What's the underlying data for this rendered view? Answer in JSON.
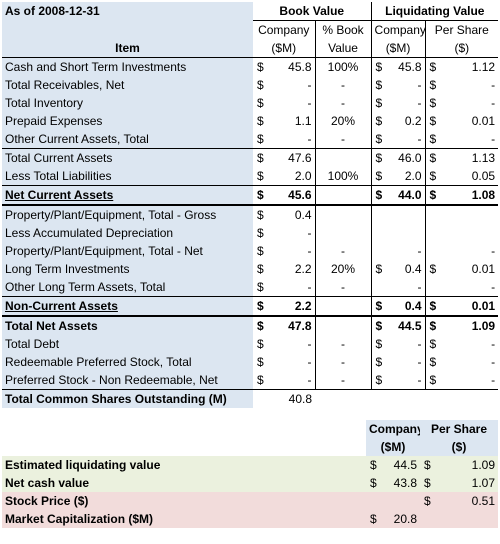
{
  "header": {
    "as_of": "As of 2008-12-31",
    "book_value": "Book Value",
    "liquidating_value": "Liquidating Value",
    "company": "Company",
    "pct_book": "% Book",
    "company2": "Company",
    "per_share": "Per Share",
    "item": "Item",
    "sm": "($M)",
    "value": "Value",
    "sm2": "($M)",
    "dollar": "($)"
  },
  "rows": [
    {
      "item": "Cash and Short Term Investments",
      "bv_c": "$",
      "bv": "45.8",
      "pct": "100%",
      "lv_c": "$",
      "lv": "45.8",
      "ps_c": "$",
      "ps": "1.12"
    },
    {
      "item": "Total Receivables, Net",
      "bv_c": "$",
      "bv": "-",
      "pct": "-",
      "lv_c": "$",
      "lv": "-",
      "ps_c": "$",
      "ps": "-"
    },
    {
      "item": "Total Inventory",
      "bv_c": "$",
      "bv": "-",
      "pct": "-",
      "lv_c": "$",
      "lv": "-",
      "ps_c": "$",
      "ps": "-"
    },
    {
      "item": "Prepaid Expenses",
      "bv_c": "$",
      "bv": "1.1",
      "pct": "20%",
      "lv_c": "$",
      "lv": "0.2",
      "ps_c": "$",
      "ps": "0.01"
    },
    {
      "item": "Other Current Assets, Total",
      "bv_c": "$",
      "bv": "-",
      "pct": "-",
      "lv_c": "$",
      "lv": "-",
      "ps_c": "$",
      "ps": "-"
    },
    {
      "item": "Total Current Assets",
      "bv_c": "$",
      "bv": "47.6",
      "pct": "",
      "lv_c": "$",
      "lv": "46.0",
      "ps_c": "$",
      "ps": "1.13"
    },
    {
      "item": "Less Total Liabilities",
      "bv_c": "$",
      "bv": "2.0",
      "pct": "100%",
      "lv_c": "$",
      "lv": "2.0",
      "ps_c": "$",
      "ps": "0.05"
    },
    {
      "item": "Net Current Assets",
      "bv_c": "$",
      "bv": "45.6",
      "pct": "",
      "lv_c": "$",
      "lv": "44.0",
      "ps_c": "$",
      "ps": "1.08"
    },
    {
      "item": "Property/Plant/Equipment, Total - Gross",
      "bv_c": "$",
      "bv": "0.4",
      "pct": "",
      "lv_c": "",
      "lv": "",
      "ps_c": "",
      "ps": ""
    },
    {
      "item": "Less Accumulated Depreciation",
      "bv_c": "$",
      "bv": "-",
      "pct": "",
      "lv_c": "",
      "lv": "",
      "ps_c": "",
      "ps": ""
    },
    {
      "item": "Property/Plant/Equipment, Total - Net",
      "bv_c": "$",
      "bv": "-",
      "pct": "-",
      "lv_c": "",
      "lv": "-",
      "ps_c": "",
      "ps": "-"
    },
    {
      "item": "Long Term Investments",
      "bv_c": "$",
      "bv": "2.2",
      "pct": "20%",
      "lv_c": "$",
      "lv": "0.4",
      "ps_c": "$",
      "ps": "0.01"
    },
    {
      "item": "Other Long Term Assets, Total",
      "bv_c": "$",
      "bv": "-",
      "pct": "-",
      "lv_c": "",
      "lv": "-",
      "ps_c": "",
      "ps": "-"
    },
    {
      "item": "Non-Current Assets",
      "bv_c": "$",
      "bv": "2.2",
      "pct": "",
      "lv_c": "$",
      "lv": "0.4",
      "ps_c": "$",
      "ps": "0.01"
    },
    {
      "item": "Total Net Assets",
      "bv_c": "$",
      "bv": "47.8",
      "pct": "",
      "lv_c": "$",
      "lv": "44.5",
      "ps_c": "$",
      "ps": "1.09"
    },
    {
      "item": "Total Debt",
      "bv_c": "$",
      "bv": "-",
      "pct": "-",
      "lv_c": "$",
      "lv": "-",
      "ps_c": "$",
      "ps": "-"
    },
    {
      "item": "Redeemable Preferred Stock, Total",
      "bv_c": "$",
      "bv": "-",
      "pct": "-",
      "lv_c": "$",
      "lv": "-",
      "ps_c": "$",
      "ps": "-"
    },
    {
      "item": "Preferred Stock - Non Redeemable, Net",
      "bv_c": "$",
      "bv": "-",
      "pct": "-",
      "lv_c": "$",
      "lv": "-",
      "ps_c": "$",
      "ps": "-"
    }
  ],
  "shares": {
    "label": "Total Common Shares Outstanding (M)",
    "value": "40.8"
  },
  "summary_header": {
    "company": "Company",
    "per_share": "Per Share",
    "sm": "($M)",
    "dollar": "($)"
  },
  "summary": [
    {
      "label": "Estimated liquidating value",
      "c_cur": "$",
      "c": "44.5",
      "p_cur": "$",
      "p": "1.09"
    },
    {
      "label": "Net cash value",
      "c_cur": "$",
      "c": "43.8",
      "p_cur": "$",
      "p": "1.07"
    },
    {
      "label": "Stock Price ($)",
      "c_cur": "",
      "c": "",
      "p_cur": "$",
      "p": "0.51"
    },
    {
      "label": "Market Capitalization ($M)",
      "c_cur": "$",
      "c": "20.8",
      "p_cur": "",
      "p": ""
    }
  ]
}
